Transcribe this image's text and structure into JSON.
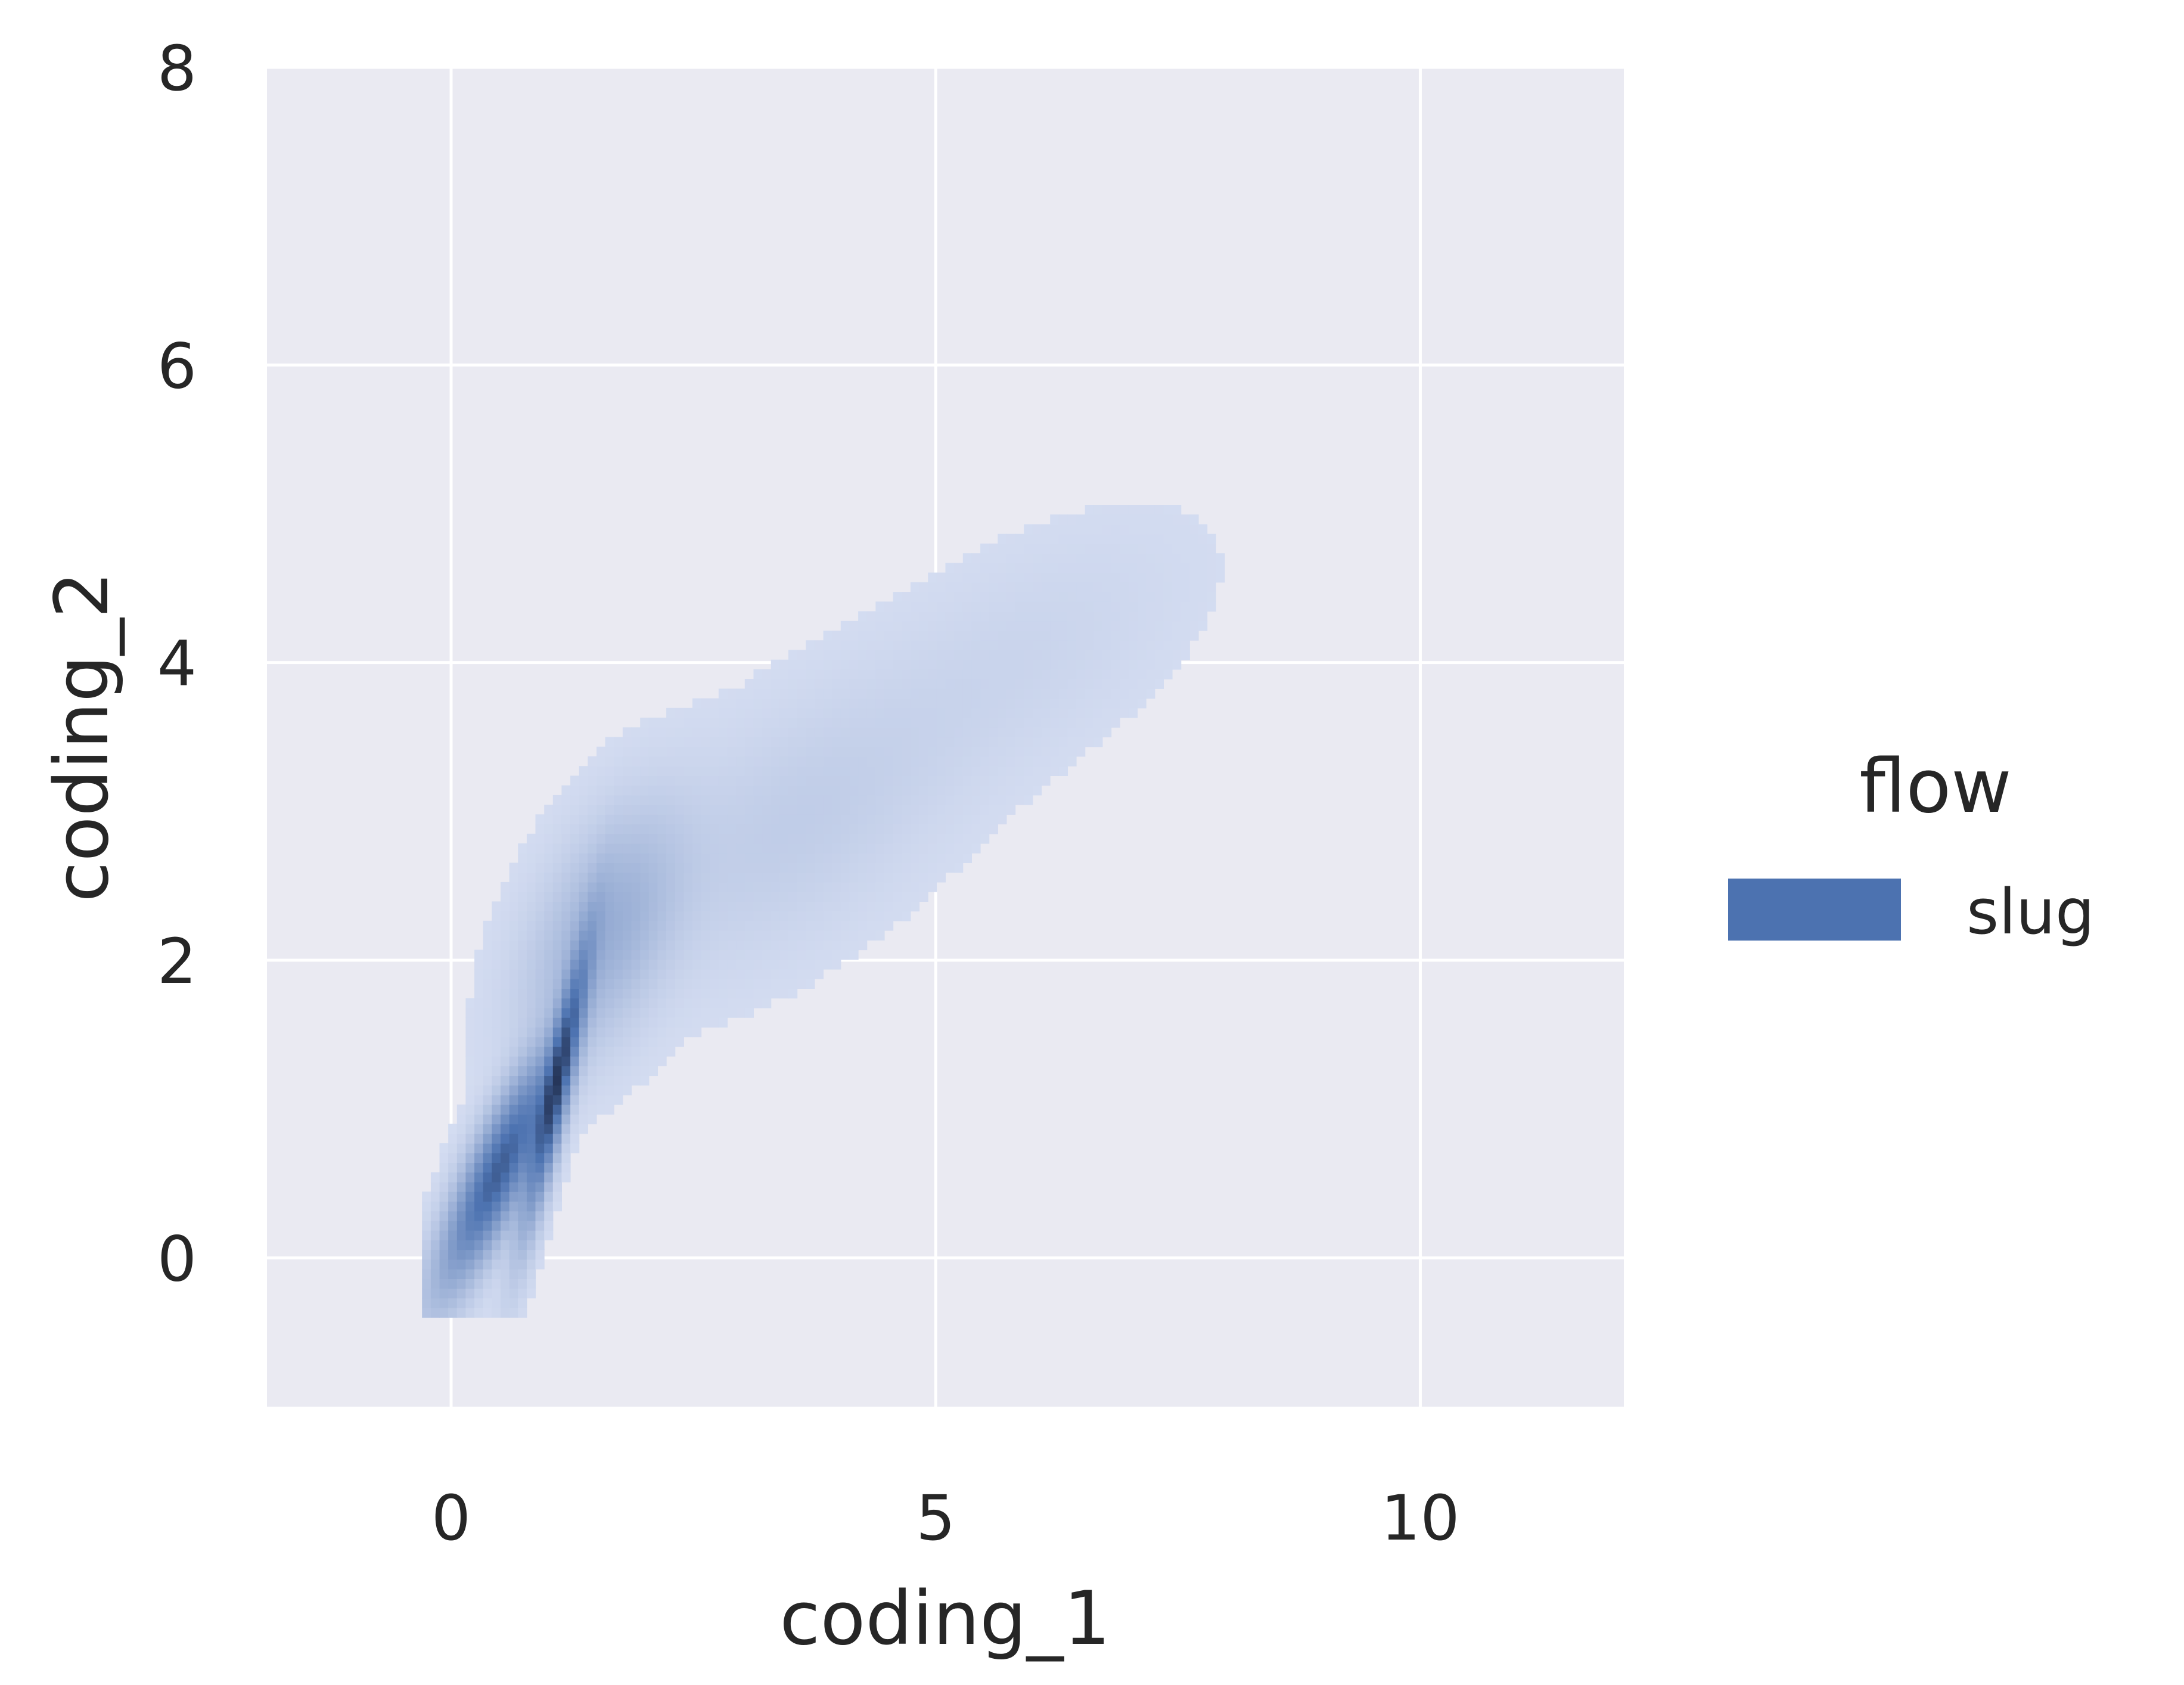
{
  "chart_data": {
    "type": "heatmap",
    "subtype": "bivariate-histogram",
    "title": "",
    "xlabel": "coding_1",
    "ylabel": "coding_2",
    "xlim": [
      -1.9,
      12.1
    ],
    "ylim": [
      -1.0,
      8.0
    ],
    "xticks": [
      0,
      5,
      10
    ],
    "yticks": [
      0,
      2,
      4,
      6,
      8
    ],
    "grid": true,
    "background": "#eaeaf2",
    "legend": {
      "title": "flow",
      "placement": "right",
      "entries": [
        {
          "label": "slug",
          "color": "#4c72b0"
        }
      ]
    },
    "series": [
      {
        "name": "slug",
        "color": "#4c72b0",
        "density_regions": [
          {
            "x": 0.5,
            "y": 0.6,
            "sx": 0.35,
            "sy": 0.45,
            "rho": 0.85,
            "weight": 0.45
          },
          {
            "x": 1.1,
            "y": 1.2,
            "sx": 0.2,
            "sy": 0.55,
            "rho": 0.9,
            "weight": 0.35
          },
          {
            "x": 1.6,
            "y": 2.2,
            "sx": 0.45,
            "sy": 0.45,
            "rho": 0.5,
            "weight": 0.12
          },
          {
            "x": 3.5,
            "y": 2.9,
            "sx": 1.0,
            "sy": 0.55,
            "rho": 0.6,
            "weight": 0.06
          },
          {
            "x": 5.8,
            "y": 4.0,
            "sx": 1.0,
            "sy": 0.5,
            "rho": 0.6,
            "weight": 0.02
          }
        ],
        "x_range": [
          -0.3,
          8.4
        ],
        "y_range": [
          -0.4,
          5.4
        ]
      }
    ]
  }
}
